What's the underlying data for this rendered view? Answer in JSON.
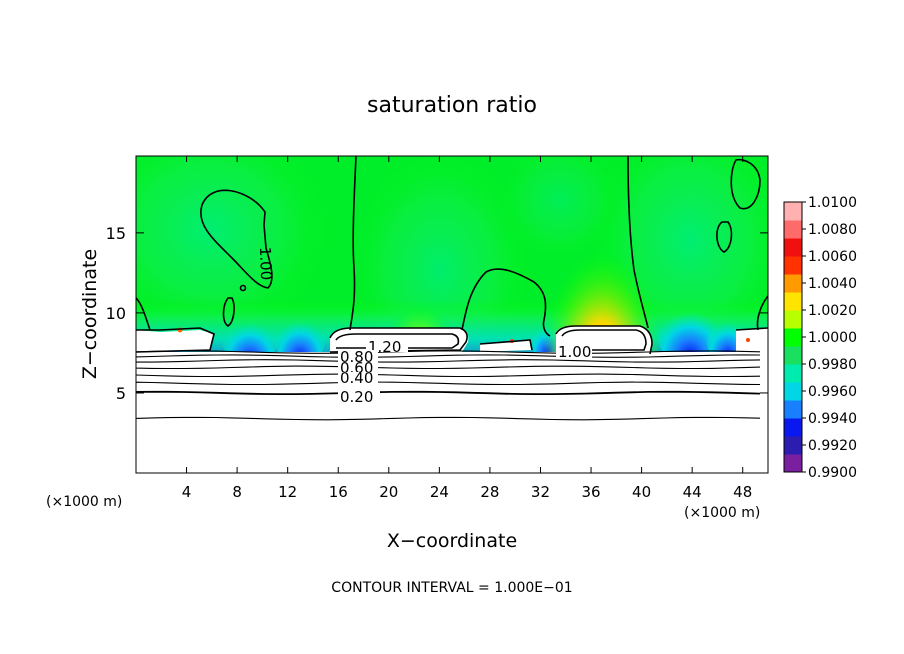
{
  "chart_data": {
    "type": "heatmap",
    "title": "saturation ratio",
    "xlabel": "X−coordinate",
    "ylabel": "Z−coordinate",
    "x_unit_left": "(×1000 m)",
    "x_unit_right": "(×1000 m)",
    "xlim": [
      0,
      50
    ],
    "ylim": [
      0,
      19.8
    ],
    "x_ticks": [
      4,
      8,
      12,
      16,
      20,
      24,
      28,
      32,
      36,
      40,
      44,
      48
    ],
    "y_ticks": [
      5,
      10,
      15
    ],
    "footer": "CONTOUR INTERVAL = 1.000E−01",
    "colorbar": {
      "min": 0.99,
      "max": 1.01,
      "labels": [
        "1.0100",
        "1.0080",
        "1.0060",
        "1.0040",
        "1.0020",
        "1.0000",
        "0.9980",
        "0.9960",
        "0.9940",
        "0.9920",
        "0.9900"
      ],
      "colors": [
        "#7a1fa0",
        "#2a1db0",
        "#0a18f0",
        "#1880ff",
        "#00d6e4",
        "#00ecae",
        "#1ae060",
        "#00ff00",
        "#b8ff00",
        "#ffe400",
        "#ff9a00",
        "#ff3200",
        "#f01010",
        "#ff6a6a",
        "#ffb0b0"
      ]
    },
    "contour_labels": [
      "1.00",
      "1.00",
      "1.20",
      "0.80",
      "0.60",
      "0.40",
      "0.20"
    ],
    "below_cloud_levels_z": [
      3.4,
      5.0,
      5.6,
      6.1,
      6.6,
      7.0,
      7.3,
      7.55
    ]
  }
}
